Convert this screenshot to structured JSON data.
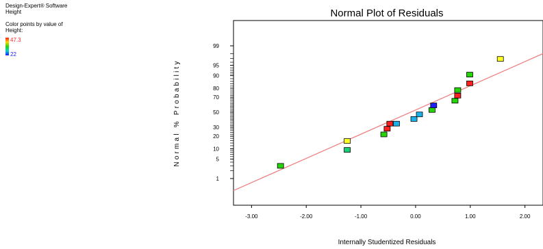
{
  "sidebar": {
    "software": "Design-Expert® Software",
    "response": "Height",
    "color_caption_1": "Color points by value of",
    "color_caption_2": "Height:",
    "color_high": "47.3",
    "color_low": "22",
    "color_high_hex": "#ff2020",
    "color_low_hex": "#2020ff"
  },
  "chart_data": {
    "type": "scatter",
    "title": "Normal Plot of Residuals",
    "xlabel": "Internally Studentized Residuals",
    "ylabel": "Normal % Probability",
    "x_ticks": [
      "-3.00",
      "-2.00",
      "-1.00",
      "0.00",
      "1.00",
      "2.00"
    ],
    "x_tick_values": [
      -3,
      -2,
      -1,
      0,
      1,
      2
    ],
    "xlim": [
      -3.33,
      2.33
    ],
    "y_ticks": [
      "1",
      "5",
      "10",
      "20",
      "30",
      "50",
      "70",
      "80",
      "90",
      "95",
      "99"
    ],
    "y_tick_values": [
      1,
      5,
      10,
      20,
      30,
      50,
      70,
      80,
      90,
      95,
      99
    ],
    "y_scale": "normal-probability",
    "reference_line": {
      "x": [
        -3.33,
        2.33
      ],
      "y": [
        0.3,
        98.0
      ],
      "color": "#f08080"
    },
    "points": [
      {
        "x": -2.47,
        "y": 3.0,
        "color": "#27d40a"
      },
      {
        "x": -1.25,
        "y": 9.3,
        "color": "#1ad07a"
      },
      {
        "x": -1.25,
        "y": 15.6,
        "color": "#ffff22"
      },
      {
        "x": -0.58,
        "y": 21.8,
        "color": "#27d40a"
      },
      {
        "x": -0.52,
        "y": 28.1,
        "color": "#ff2020"
      },
      {
        "x": -0.47,
        "y": 34.4,
        "color": "#ff2020"
      },
      {
        "x": -0.35,
        "y": 34.4,
        "color": "#1ab0e8"
      },
      {
        "x": -0.03,
        "y": 40.6,
        "color": "#1ab0e8"
      },
      {
        "x": 0.07,
        "y": 46.9,
        "color": "#1ab0e8"
      },
      {
        "x": 0.3,
        "y": 53.1,
        "color": "#27d40a"
      },
      {
        "x": 0.33,
        "y": 59.4,
        "color": "#2020ff"
      },
      {
        "x": 0.72,
        "y": 65.6,
        "color": "#27d40a"
      },
      {
        "x": 0.77,
        "y": 71.9,
        "color": "#ff2020"
      },
      {
        "x": 0.77,
        "y": 78.1,
        "color": "#27d40a"
      },
      {
        "x": 0.99,
        "y": 84.4,
        "color": "#ff2020"
      },
      {
        "x": 0.99,
        "y": 90.6,
        "color": "#27d40a"
      },
      {
        "x": 1.55,
        "y": 96.9,
        "color": "#ffff22"
      }
    ],
    "grid": false,
    "legend": "none"
  }
}
